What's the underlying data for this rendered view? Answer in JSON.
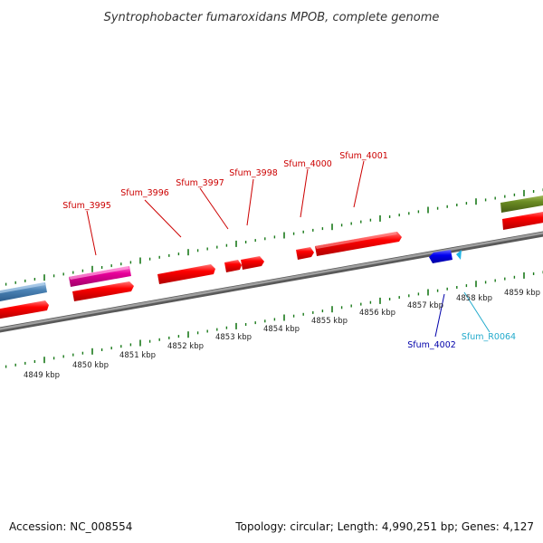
{
  "title": "Syntrophobacter fumaroxidans MPOB, complete genome",
  "footer": {
    "accession": "Accession: NC_008554",
    "summary": "Topology: circular; Length: 4,990,251 bp; Genes: 4,127"
  },
  "ticks": {
    "unit": "kbp",
    "labels": [
      "4849 kbp",
      "4850 kbp",
      "4851 kbp",
      "4852 kbp",
      "4853 kbp",
      "4854 kbp",
      "4855 kbp",
      "4856 kbp",
      "4857 kbp",
      "4858 kbp",
      "4859 kbp"
    ]
  },
  "genes": [
    {
      "id": "Sfum_3995",
      "color": "#e8009a",
      "strand": "+"
    },
    {
      "id": "Sfum_3996",
      "color": "#ff0000",
      "strand": "+"
    },
    {
      "id": "Sfum_3997",
      "color": "#ff0000",
      "strand": "+"
    },
    {
      "id": "Sfum_3998",
      "color": "#ff0000",
      "strand": "+"
    },
    {
      "id": "Sfum_4000",
      "color": "#ff0000",
      "strand": "+"
    },
    {
      "id": "Sfum_4001",
      "color": "#ff0000",
      "strand": "+"
    },
    {
      "id": "Sfum_4002",
      "color": "#0000ee",
      "strand": "-"
    },
    {
      "id": "Sfum_R0064",
      "color": "#1eb4e6",
      "strand": "-"
    }
  ],
  "colors": {
    "backbone": "#8a8a8a",
    "tick": "#1a7a1a",
    "gene_label_red": "#cc0000",
    "gene_label_blue": "#0000aa",
    "gene_label_cyan": "#22aacc",
    "feature_blue": "#4a82b4",
    "feature_olive": "#6b8c23",
    "feature_red": "#ff0000",
    "feature_magenta": "#e8009a"
  }
}
